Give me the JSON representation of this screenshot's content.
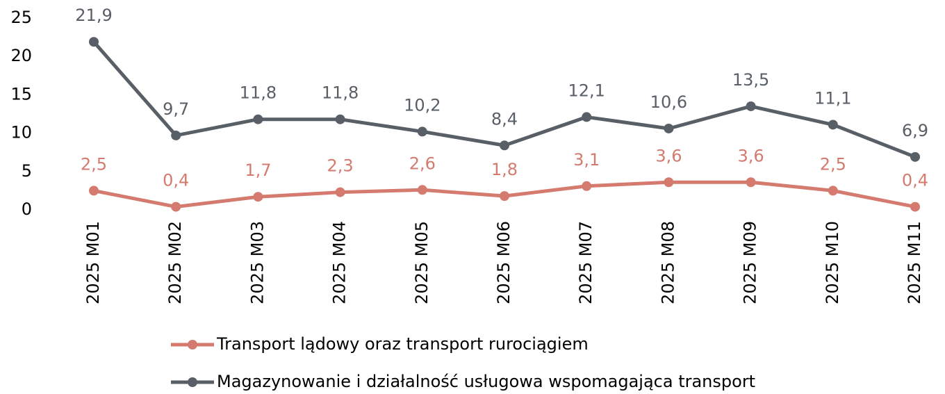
{
  "chart_data": {
    "type": "line",
    "categories": [
      "2025 M01",
      "2025 M02",
      "2025 M03",
      "2025 M04",
      "2025 M05",
      "2025 M06",
      "2025 M07",
      "2025 M08",
      "2025 M09",
      "2025 M10",
      "2025 M11"
    ],
    "series": [
      {
        "name": "Transport lądowy oraz transport rurociągiem",
        "color": "#d47a6e",
        "values": [
          2.5,
          0.4,
          1.7,
          2.3,
          2.6,
          1.8,
          3.1,
          3.6,
          3.6,
          2.5,
          0.4
        ],
        "value_labels": [
          "2,5",
          "0,4",
          "1,7",
          "2,3",
          "2,6",
          "1,8",
          "3,1",
          "3,6",
          "3,6",
          "2,5",
          "0,4"
        ]
      },
      {
        "name": "Magazynowanie i działalność usługowa wspomagająca transport",
        "color": "#595f66",
        "values": [
          21.9,
          9.7,
          11.8,
          11.8,
          10.2,
          8.4,
          12.1,
          10.6,
          13.5,
          11.1,
          6.9
        ],
        "value_labels": [
          "21,9",
          "9,7",
          "11,8",
          "11,8",
          "10,2",
          "8,4",
          "12,1",
          "10,6",
          "13,5",
          "11,1",
          "6,9"
        ]
      }
    ],
    "ylim": [
      0,
      25
    ],
    "yticks": [
      0,
      5,
      10,
      15,
      20,
      25
    ],
    "grid": false,
    "legend": "bottom"
  }
}
